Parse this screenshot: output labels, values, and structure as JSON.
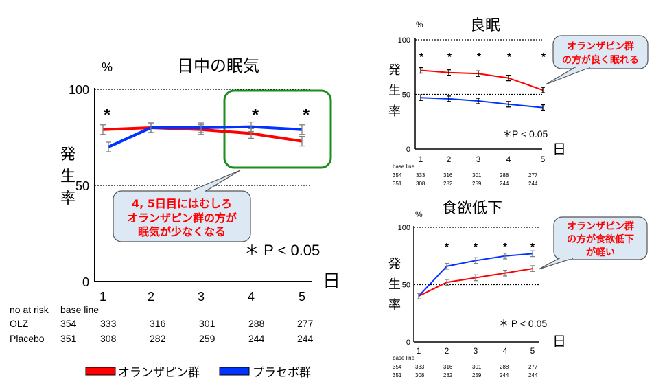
{
  "chart_data": [
    {
      "type": "line",
      "title": "日中の眠気",
      "unit_label": "%",
      "ylabel": "発生率",
      "xlabel": "日",
      "ylim": [
        0,
        100
      ],
      "yticks": [
        "0",
        "50",
        "100"
      ],
      "categories": [
        "1",
        "2",
        "3",
        "4",
        "5"
      ],
      "gridlines": [
        50,
        100
      ],
      "series": [
        {
          "name": "オランザピン群",
          "color": "#ff0000",
          "values": [
            79,
            80,
            79,
            77,
            73
          ],
          "errors": [
            2.5,
            2.5,
            2.5,
            2.5,
            2.5
          ]
        },
        {
          "name": "プラセボ群",
          "color": "#0033ff",
          "values": [
            70,
            80,
            80,
            80.5,
            79
          ],
          "errors": [
            2.5,
            2.5,
            2.5,
            2.5,
            2.5
          ]
        }
      ],
      "significance_marks": [
        {
          "day": "1",
          "label": "*"
        },
        {
          "day": "4",
          "label": "*"
        },
        {
          "day": "5",
          "label": "*"
        }
      ],
      "p_note": "＊ P < 0.05",
      "callout": {
        "lines": [
          "4, 5日目にはむしろ",
          "オランザピン群の方が",
          "眠気が少なくなる"
        ]
      },
      "risk_table": {
        "header": [
          "no at risk",
          "base line"
        ],
        "rows": [
          {
            "label": "OLZ",
            "values": [
              "354",
              "333",
              "316",
              "301",
              "288",
              "277"
            ]
          },
          {
            "label": "Placebo",
            "values": [
              "351",
              "308",
              "282",
              "259",
              "244",
              "244"
            ]
          }
        ]
      }
    },
    {
      "type": "line",
      "title": "良眠",
      "unit_label": "%",
      "ylabel": "発生率",
      "xlabel": "日",
      "ylim": [
        0,
        100
      ],
      "yticks": [
        "0",
        "50",
        "100"
      ],
      "categories": [
        "1",
        "2",
        "3",
        "4",
        "5"
      ],
      "gridlines": [
        50,
        100
      ],
      "series": [
        {
          "name": "オランザピン群",
          "color": "#ff0000",
          "values": [
            72,
            70,
            69,
            65,
            54
          ],
          "errors": [
            2.5,
            2.5,
            2.5,
            2.5,
            2.5
          ]
        },
        {
          "name": "プラセボ群",
          "color": "#0033ff",
          "values": [
            47,
            46,
            44,
            41,
            38
          ],
          "errors": [
            2.5,
            2.5,
            2.5,
            2.5,
            2.5
          ]
        }
      ],
      "significance_marks": [
        {
          "day": "1",
          "label": "*"
        },
        {
          "day": "2",
          "label": "*"
        },
        {
          "day": "3",
          "label": "*"
        },
        {
          "day": "4",
          "label": "*"
        },
        {
          "day": "5",
          "label": "*"
        }
      ],
      "p_note": "＊P < 0.05",
      "callout": {
        "lines": [
          "オランザピン群",
          "の方が良く眠れる"
        ]
      },
      "risk_table": {
        "header": [
          "base line"
        ],
        "rows": [
          {
            "label": "",
            "values": [
              "354",
              "333",
              "316",
              "301",
              "288",
              "277"
            ]
          },
          {
            "label": "",
            "values": [
              "351",
              "308",
              "282",
              "259",
              "244",
              "244"
            ]
          }
        ]
      }
    },
    {
      "type": "line",
      "title": "食欲低下",
      "unit_label": "%",
      "ylabel": "発生率",
      "xlabel": "日",
      "ylim": [
        0,
        100
      ],
      "yticks": [
        "0",
        "50",
        "100"
      ],
      "categories": [
        "1",
        "2",
        "3",
        "4",
        "5"
      ],
      "gridlines": [
        50,
        100
      ],
      "series": [
        {
          "name": "オランザピン群",
          "color": "#ff0000",
          "values": [
            40,
            52,
            56,
            60,
            64
          ],
          "errors": [
            2.5,
            2.5,
            2.5,
            2.5,
            2.5
          ]
        },
        {
          "name": "プラセボ群",
          "color": "#0033ff",
          "values": [
            40,
            66,
            71,
            75,
            77
          ],
          "errors": [
            2.5,
            2.5,
            2.5,
            2.5,
            2.5
          ]
        }
      ],
      "significance_marks": [
        {
          "day": "2",
          "label": "*"
        },
        {
          "day": "3",
          "label": "*"
        },
        {
          "day": "4",
          "label": "*"
        },
        {
          "day": "5",
          "label": "*"
        }
      ],
      "p_note": "＊ P < 0.05",
      "callout": {
        "lines": [
          "オランザピン群",
          "の方が食欲低下",
          "が軽い"
        ]
      },
      "risk_table": {
        "header": [
          "base line"
        ],
        "rows": [
          {
            "label": "",
            "values": [
              "354",
              "333",
              "316",
              "301",
              "288",
              "277"
            ]
          },
          {
            "label": "",
            "values": [
              "351",
              "308",
              "282",
              "259",
              "244",
              "244"
            ]
          }
        ]
      }
    }
  ],
  "legend": {
    "items": [
      {
        "label": "オランザピン群",
        "color": "#ff0000"
      },
      {
        "label": "プラセボ群",
        "color": "#0033ff"
      }
    ]
  }
}
